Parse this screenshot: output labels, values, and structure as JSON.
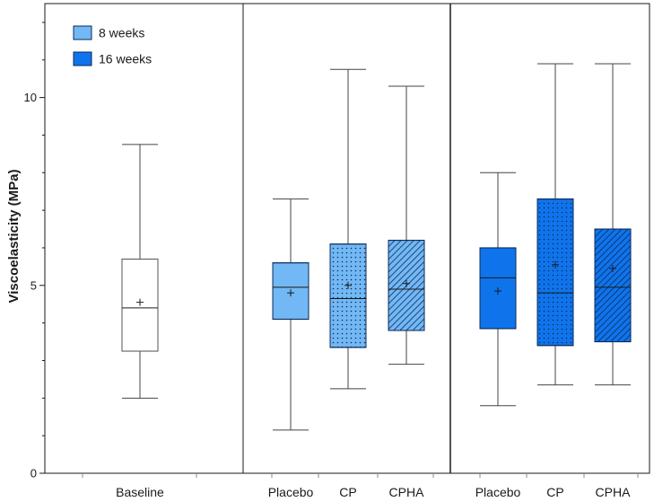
{
  "chart_data": {
    "type": "box",
    "ylabel": "Viscoelasticity (MPa)",
    "ylim": [
      0,
      12.5
    ],
    "yticks": [
      0,
      5,
      10
    ],
    "legend": {
      "placement": "top-left",
      "entries": [
        {
          "label": "8 weeks",
          "color": "#72b8f4"
        },
        {
          "label": "16 weeks",
          "color": "#0f74ec"
        }
      ]
    },
    "panels": [
      {
        "name": "baseline",
        "categories": [
          "Baseline"
        ]
      },
      {
        "name": "8 weeks",
        "categories": [
          "Placebo",
          "CP",
          "CPHA"
        ]
      },
      {
        "name": "16 weeks",
        "categories": [
          "Placebo",
          "CP",
          "CPHA"
        ]
      }
    ],
    "boxes": [
      {
        "panel": 0,
        "category": "Baseline",
        "group": "baseline",
        "pattern": "none",
        "min": 2.0,
        "q1": 3.25,
        "median": 4.4,
        "q3": 5.7,
        "max": 8.75,
        "mean": 4.55
      },
      {
        "panel": 1,
        "category": "Placebo",
        "group": "8 weeks",
        "pattern": "none",
        "min": 1.15,
        "q1": 4.1,
        "median": 4.95,
        "q3": 5.6,
        "max": 7.3,
        "mean": 4.8
      },
      {
        "panel": 1,
        "category": "CP",
        "group": "8 weeks",
        "pattern": "dots",
        "min": 2.25,
        "q1": 3.35,
        "median": 4.65,
        "q3": 6.1,
        "max": 10.75,
        "mean": 5.0
      },
      {
        "panel": 1,
        "category": "CPHA",
        "group": "8 weeks",
        "pattern": "hatch",
        "min": 2.9,
        "q1": 3.8,
        "median": 4.9,
        "q3": 6.2,
        "max": 10.3,
        "mean": 5.05
      },
      {
        "panel": 2,
        "category": "Placebo",
        "group": "16 weeks",
        "pattern": "none",
        "min": 1.8,
        "q1": 3.85,
        "median": 5.2,
        "q3": 6.0,
        "max": 8.0,
        "mean": 4.85
      },
      {
        "panel": 2,
        "category": "CP",
        "group": "16 weeks",
        "pattern": "dots",
        "min": 2.35,
        "q1": 3.4,
        "median": 4.8,
        "q3": 7.3,
        "max": 10.9,
        "mean": 5.55
      },
      {
        "panel": 2,
        "category": "CPHA",
        "group": "16 weeks",
        "pattern": "hatch",
        "min": 2.35,
        "q1": 3.5,
        "median": 4.95,
        "q3": 6.5,
        "max": 10.9,
        "mean": 5.45
      }
    ],
    "colors": {
      "baseline": "#ffffff",
      "8 weeks": "#72b8f4",
      "16 weeks": "#0f74ec",
      "frame": "#1a1a1a",
      "whisker": "#444444"
    }
  }
}
